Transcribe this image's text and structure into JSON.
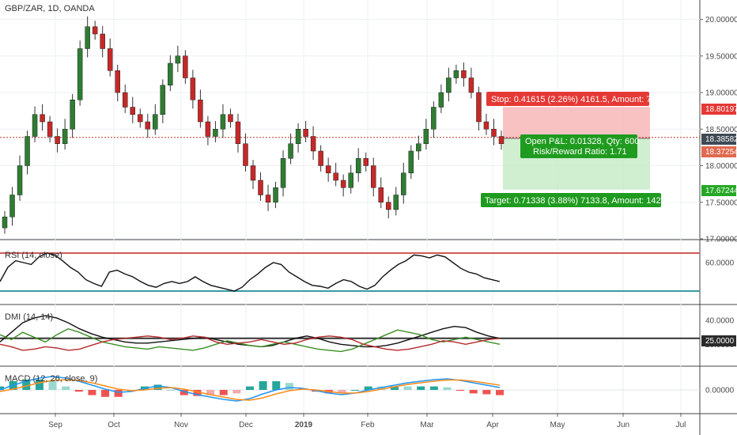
{
  "chart_data": [
    {
      "type": "candlestick",
      "title": "GBP/ZAR, 1D, OANDA",
      "x_axis_labels": [
        "Sep",
        "Oct",
        "Nov",
        "Dec",
        "2019",
        "Feb",
        "Mar",
        "Apr",
        "May",
        "Jun",
        "Jul"
      ],
      "y_ticks": [
        "20.00000",
        "19.50000",
        "19.00000",
        "18.50000",
        "18.00000",
        "17.50000",
        "17.00000"
      ],
      "ylim": [
        17.0,
        20.2
      ],
      "close_series": [
        17.3,
        17.6,
        18.0,
        18.4,
        18.7,
        18.6,
        18.4,
        18.3,
        18.5,
        18.9,
        19.6,
        19.9,
        19.8,
        19.6,
        19.3,
        19.0,
        18.8,
        18.7,
        18.6,
        18.5,
        18.7,
        19.1,
        19.4,
        19.5,
        19.2,
        18.9,
        18.6,
        18.4,
        18.5,
        18.7,
        18.6,
        18.3,
        18.0,
        17.8,
        17.6,
        17.5,
        17.7,
        18.1,
        18.3,
        18.5,
        18.4,
        18.2,
        18.0,
        17.9,
        17.8,
        17.7,
        17.9,
        18.1,
        18.0,
        17.7,
        17.5,
        17.4,
        17.6,
        17.9,
        18.2,
        18.3,
        18.5,
        18.8,
        19.0,
        19.2,
        19.3,
        19.2,
        19.0,
        18.6,
        18.5,
        18.4,
        18.3
      ],
      "annotations": {
        "stop": "Stop: 0.41615 (2.26%) 4161.5, Amount: 750.31",
        "pnl_line1": "Open P&L: 0.01328, Qty: 600",
        "pnl_line2": "Risk/Reward Ratio: 1.71",
        "target": "Target: 0.71338 (3.88%) 7133.8, Amount: 1428.03"
      },
      "price_tags": {
        "stop_level": "18.80197",
        "current": "18.38582",
        "entry": "18.37254",
        "target_level": "17.67244"
      },
      "levels": {
        "stop": 18.80197,
        "current": 18.38582,
        "entry": 18.37254,
        "target": 17.67244
      },
      "colors": {
        "up": "#2e7d32",
        "down": "#c62828",
        "stop_zone": "#f7b7b7",
        "target_zone": "#c8ebc8",
        "stop_tag": "#e53935",
        "target_tag": "#26a826"
      }
    },
    {
      "type": "line",
      "title": "RSI (14, close)",
      "y_ticks": [
        "60.0000"
      ],
      "ylim": [
        20,
        80
      ],
      "bands": [
        70,
        30
      ],
      "values": [
        40,
        55,
        62,
        60,
        58,
        66,
        70,
        68,
        62,
        55,
        50,
        42,
        38,
        35,
        50,
        52,
        48,
        45,
        40,
        36,
        34,
        38,
        40,
        38,
        40,
        45,
        40,
        36,
        34,
        32,
        30,
        34,
        42,
        48,
        55,
        60,
        58,
        50,
        45,
        40,
        36,
        35,
        33,
        38,
        42,
        40,
        35,
        32,
        36,
        45,
        52,
        58,
        62,
        68,
        67,
        65,
        68,
        66,
        60,
        54,
        50,
        48,
        44,
        42,
        40
      ]
    },
    {
      "type": "line",
      "title": "DMI (14, 14)",
      "y_ticks": [
        "40.0000",
        "25.0000",
        "20.0000"
      ],
      "ylim": [
        5,
        50
      ],
      "series": [
        {
          "name": "ADX",
          "values": [
            22,
            30,
            38,
            42,
            44,
            42,
            38,
            33,
            29,
            26,
            24,
            22,
            21,
            21,
            22,
            23,
            24,
            25,
            26,
            24,
            22,
            20,
            19,
            18,
            19,
            22,
            25,
            27,
            25,
            22,
            20,
            19,
            18,
            18,
            19,
            21,
            24,
            27,
            30,
            33,
            35,
            34,
            30,
            27,
            25
          ]
        },
        {
          "name": "+DI",
          "values": [
            28,
            24,
            30,
            26,
            22,
            28,
            33,
            30,
            26,
            22,
            20,
            18,
            17,
            16,
            18,
            17,
            16,
            15,
            17,
            20,
            23,
            21,
            19,
            18,
            20,
            22,
            20,
            18,
            16,
            15,
            14,
            16,
            20,
            24,
            28,
            32,
            30,
            28,
            24,
            22,
            24,
            26,
            24,
            22,
            20
          ]
        },
        {
          "name": "-DI",
          "values": [
            20,
            18,
            15,
            16,
            18,
            17,
            15,
            16,
            19,
            22,
            24,
            25,
            26,
            27,
            26,
            24,
            25,
            27,
            26,
            22,
            20,
            21,
            22,
            24,
            22,
            20,
            21,
            24,
            26,
            27,
            26,
            24,
            20,
            18,
            16,
            15,
            16,
            18,
            20,
            23,
            22,
            20,
            22,
            24,
            25
          ]
        }
      ]
    },
    {
      "type": "line",
      "title": "MACD (12, 26, close, 9)",
      "y_ticks": [
        "0.00000"
      ],
      "ylim": [
        -0.5,
        0.5
      ],
      "series": [
        {
          "name": "MACD",
          "values": [
            0.0,
            0.12,
            0.22,
            0.3,
            0.34,
            0.3,
            0.22,
            0.12,
            0.02,
            -0.06,
            -0.04,
            0.04,
            0.1,
            0.06,
            -0.04,
            -0.12,
            -0.18,
            -0.24,
            -0.28,
            -0.22,
            -0.1,
            0.0,
            0.06,
            0.04,
            -0.02,
            -0.08,
            -0.12,
            -0.08,
            0.0,
            0.06,
            0.12,
            0.18,
            0.22,
            0.26,
            0.28,
            0.24,
            0.18,
            0.12,
            0.06
          ]
        },
        {
          "name": "Signal",
          "values": [
            -0.04,
            0.02,
            0.1,
            0.18,
            0.24,
            0.26,
            0.24,
            0.18,
            0.1,
            0.02,
            -0.02,
            0.0,
            0.04,
            0.06,
            0.02,
            -0.05,
            -0.12,
            -0.18,
            -0.24,
            -0.26,
            -0.2,
            -0.1,
            -0.02,
            0.02,
            0.0,
            -0.04,
            -0.08,
            -0.08,
            -0.04,
            0.02,
            0.08,
            0.14,
            0.18,
            0.22,
            0.25,
            0.25,
            0.22,
            0.17,
            0.12
          ]
        }
      ]
    }
  ]
}
